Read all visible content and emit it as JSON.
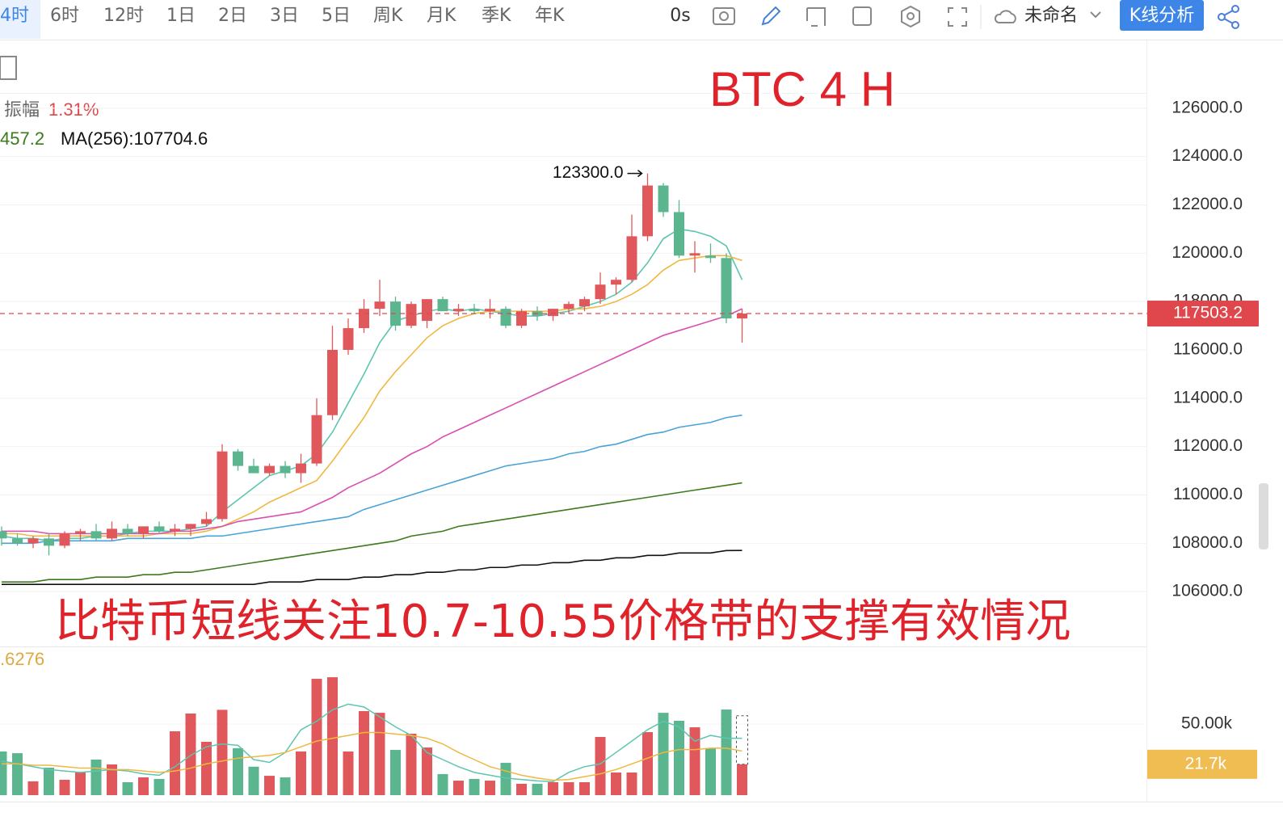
{
  "toolbar": {
    "periods": [
      "4时",
      "6时",
      "12时",
      "1日",
      "2日",
      "3日",
      "5日",
      "周K",
      "月K",
      "季K",
      "年K"
    ],
    "timer": "0s",
    "layout_name": "未命名",
    "analysis_button": "K线分析"
  },
  "legend": {
    "amplitude_label": "振幅",
    "amplitude_value": "1.31%",
    "ma_partial": "457.2",
    "ma256": "MA(256):107704.6",
    "volume_partial": ".6276"
  },
  "chart_data": [
    {
      "type": "candlestick",
      "title": "BTC    4 H",
      "subtitle": "比特币短线关注10.7-10.55价格带的支撑有效情况",
      "up_color": "#e0585b",
      "down_color": "#5bb58f",
      "open": [
        108500,
        108200,
        108000,
        108200,
        107900,
        108400,
        108500,
        108200,
        108600,
        108400,
        108700,
        108500,
        108600,
        108800,
        109000,
        111800,
        111200,
        110900,
        111200,
        110900,
        111300,
        113300,
        116000,
        116900,
        117700,
        118000,
        117000,
        117200,
        118100,
        117600,
        117700,
        117600,
        117700,
        117000,
        117600,
        117400,
        117700,
        117800,
        118100,
        118700,
        118900,
        120700,
        122800,
        121700,
        119900,
        119900,
        119800,
        117300
      ],
      "high": [
        108700,
        108400,
        108300,
        108400,
        108500,
        108600,
        108800,
        108900,
        108800,
        108700,
        108900,
        108800,
        108800,
        109300,
        112100,
        111900,
        111500,
        111300,
        111400,
        111700,
        114000,
        117000,
        117300,
        118100,
        118900,
        118200,
        118000,
        118100,
        118200,
        117900,
        117900,
        118100,
        117800,
        117700,
        117800,
        117700,
        118000,
        118200,
        119200,
        119000,
        121600,
        123300,
        122900,
        122200,
        120500,
        120400,
        120000,
        117700
      ],
      "low": [
        107900,
        107900,
        107800,
        107500,
        107800,
        108100,
        108100,
        108100,
        108300,
        108200,
        108400,
        108300,
        108300,
        108700,
        108900,
        111000,
        110900,
        110800,
        110700,
        110500,
        111200,
        113100,
        115800,
        116700,
        117400,
        116800,
        116900,
        116900,
        117600,
        117400,
        117500,
        117300,
        116900,
        116900,
        117200,
        117200,
        117500,
        117600,
        117900,
        118300,
        118800,
        120500,
        121500,
        119800,
        119200,
        119600,
        117100,
        116300
      ],
      "close": [
        108200,
        108000,
        108200,
        107900,
        108400,
        108500,
        108200,
        108600,
        108400,
        108700,
        108500,
        108600,
        108800,
        109000,
        111800,
        111200,
        110900,
        111200,
        110900,
        111300,
        113300,
        116000,
        116900,
        117700,
        118000,
        117000,
        117900,
        118100,
        117600,
        117700,
        117600,
        117700,
        117000,
        117600,
        117400,
        117700,
        117900,
        118100,
        118700,
        118900,
        120700,
        122800,
        121700,
        119900,
        120000,
        119800,
        117300,
        117503.2
      ],
      "series": [
        {
          "color": "#5cc6b0",
          "values": [
            108300,
            108200,
            108200,
            108100,
            108200,
            108200,
            108300,
            108300,
            108400,
            108500,
            108500,
            108500,
            108600,
            108700,
            109300,
            109800,
            110300,
            110800,
            111000,
            111200,
            111700,
            112600,
            113800,
            115000,
            116300,
            117200,
            117400,
            117600,
            117700,
            117600,
            117700,
            117600,
            117500,
            117400,
            117400,
            117500,
            117600,
            117800,
            118000,
            118300,
            118800,
            119600,
            120600,
            121000,
            120900,
            120700,
            120300,
            118900
          ]
        },
        {
          "color": "#f0b840",
          "values": [
            108400,
            108400,
            108300,
            108300,
            108300,
            108300,
            108300,
            108300,
            108300,
            108300,
            108400,
            108400,
            108400,
            108500,
            108700,
            109000,
            109300,
            109700,
            110000,
            110300,
            110600,
            111400,
            112300,
            113200,
            114300,
            115100,
            115800,
            116500,
            117000,
            117300,
            117500,
            117600,
            117600,
            117600,
            117600,
            117600,
            117700,
            117700,
            117800,
            118000,
            118300,
            118700,
            119300,
            119700,
            119800,
            119900,
            119900,
            119700
          ]
        },
        {
          "color": "#d94fb0",
          "values": [
            108500,
            108500,
            108500,
            108400,
            108400,
            108400,
            108400,
            108400,
            108400,
            108400,
            108400,
            108500,
            108500,
            108600,
            108700,
            108900,
            109000,
            109100,
            109200,
            109300,
            109600,
            109900,
            110300,
            110600,
            110900,
            111300,
            111700,
            112000,
            112400,
            112700,
            113000,
            113300,
            113600,
            113900,
            114200,
            114500,
            114800,
            115100,
            115400,
            115700,
            116000,
            116300,
            116600,
            116800,
            117000,
            117200,
            117400,
            117700
          ]
        },
        {
          "color": "#4aa3d8",
          "values": [
            108000,
            108000,
            108000,
            108100,
            108100,
            108100,
            108100,
            108100,
            108200,
            108200,
            108200,
            108200,
            108200,
            108300,
            108300,
            108400,
            108500,
            108600,
            108700,
            108800,
            108900,
            109000,
            109100,
            109400,
            109600,
            109800,
            110000,
            110200,
            110400,
            110600,
            110800,
            111000,
            111200,
            111300,
            111400,
            111500,
            111700,
            111800,
            112000,
            112100,
            112300,
            112500,
            112600,
            112800,
            112900,
            113000,
            113200,
            113300
          ]
        },
        {
          "color": "#3c7a1e",
          "values": [
            106400,
            106400,
            106400,
            106500,
            106500,
            106500,
            106600,
            106600,
            106600,
            106700,
            106700,
            106800,
            106800,
            106900,
            107000,
            107100,
            107200,
            107300,
            107400,
            107500,
            107600,
            107700,
            107800,
            107900,
            108000,
            108100,
            108300,
            108400,
            108500,
            108700,
            108800,
            108900,
            109000,
            109100,
            109200,
            109300,
            109400,
            109500,
            109600,
            109700,
            109800,
            109900,
            110000,
            110100,
            110200,
            110300,
            110400,
            110500
          ]
        },
        {
          "color": "#111111",
          "values": [
            106300,
            106300,
            106300,
            106300,
            106300,
            106300,
            106300,
            106300,
            106300,
            106300,
            106300,
            106300,
            106300,
            106300,
            106300,
            106300,
            106300,
            106400,
            106400,
            106400,
            106500,
            106500,
            106500,
            106600,
            106600,
            106700,
            106700,
            106800,
            106800,
            106900,
            106900,
            107000,
            107000,
            107100,
            107100,
            107200,
            107200,
            107300,
            107300,
            107400,
            107400,
            107500,
            107500,
            107600,
            107600,
            107600,
            107700,
            107704.6
          ]
        }
      ],
      "high_marker": {
        "value": 123300,
        "label": "123300.0"
      },
      "last_price": 117503.2,
      "ylim": [
        104000,
        128000
      ],
      "yticks": [
        {
          "value": 106000,
          "label": "106000.0"
        },
        {
          "value": 108000,
          "label": "108000.0"
        },
        {
          "value": 110000,
          "label": "110000.0"
        },
        {
          "value": 112000,
          "label": "112000.0"
        },
        {
          "value": 114000,
          "label": "114000.0"
        },
        {
          "value": 116000,
          "label": "116000.0"
        },
        {
          "value": 118000,
          "label": "118000.0"
        },
        {
          "value": 120000,
          "label": "120000.0"
        },
        {
          "value": 122000,
          "label": "122000.0"
        },
        {
          "value": 124000,
          "label": "124000.0"
        },
        {
          "value": 126000,
          "label": "126000.0"
        }
      ],
      "grid": true
    },
    {
      "type": "bar",
      "values": [
        30700,
        29500,
        9700,
        19300,
        10800,
        16500,
        25000,
        21600,
        9100,
        12500,
        11400,
        44900,
        57400,
        37500,
        60000,
        33000,
        20000,
        13600,
        12500,
        30700,
        81800,
        82900,
        30700,
        59100,
        57900,
        31800,
        43200,
        33500,
        14800,
        10200,
        11400,
        10200,
        22700,
        8000,
        8000,
        9100,
        9100,
        9100,
        40900,
        15900,
        15900,
        44300,
        57900,
        52300,
        47700,
        32900,
        60200,
        21700
      ],
      "series": [
        {
          "color": "#5cc6b0",
          "values": [
            24000,
            22000,
            20000,
            18000,
            17000,
            16000,
            17000,
            18000,
            17000,
            15000,
            14000,
            20000,
            28000,
            34000,
            36000,
            35000,
            25000,
            23000,
            30000,
            46000,
            52000,
            60000,
            64000,
            62000,
            55000,
            48000,
            42000,
            30000,
            25000,
            20000,
            16000,
            14000,
            12000,
            11000,
            10000,
            9500,
            16000,
            20000,
            22000,
            30000,
            38000,
            46000,
            52000,
            48000,
            38000,
            42000,
            40000,
            40000
          ]
        },
        {
          "color": "#f0b840",
          "values": [
            22000,
            22000,
            21000,
            21000,
            20000,
            19000,
            19000,
            18000,
            18000,
            17000,
            16000,
            17000,
            19000,
            22000,
            24000,
            26000,
            27000,
            28000,
            30000,
            34000,
            38000,
            40000,
            42000,
            44000,
            44000,
            43000,
            42000,
            40000,
            36000,
            30000,
            25000,
            20000,
            17000,
            14000,
            12000,
            10500,
            11000,
            13000,
            15000,
            18000,
            22000,
            26000,
            30000,
            32000,
            32000,
            33000,
            33000,
            31000
          ]
        }
      ],
      "last_value": {
        "value": 21700,
        "label": "21.7k"
      },
      "ylim": [
        0,
        100000
      ],
      "yticks": [
        {
          "value": 50000,
          "label": "50.00k"
        }
      ]
    }
  ]
}
